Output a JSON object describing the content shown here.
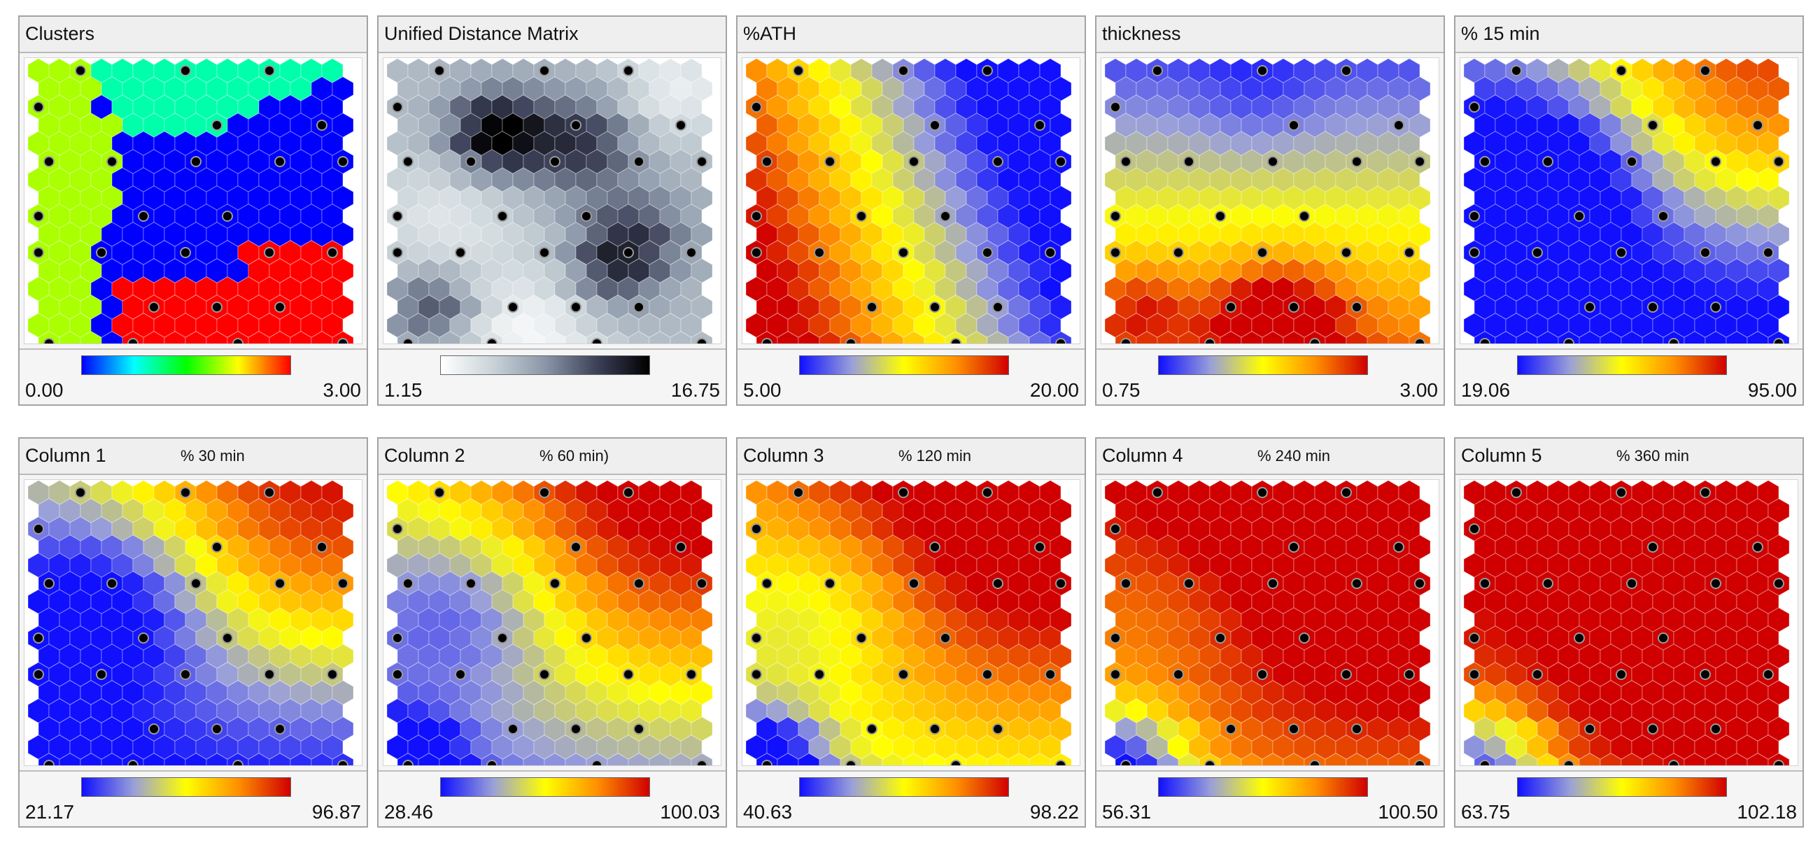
{
  "colormaps": {
    "clusters": [
      "#0000ff",
      "#00ffff",
      "#00ff00",
      "#ffff00",
      "#ff0000"
    ],
    "umatrix": [
      "#ffffff",
      "#c9d3d8",
      "#8a96a8",
      "#3c4058",
      "#000000"
    ],
    "heat": [
      "#1010ff",
      "#9aa0d8",
      "#ffff00",
      "#ff9000",
      "#d00000"
    ]
  },
  "panels": [
    {
      "title": "Clusters",
      "subtitle": "",
      "colormap": "clusters",
      "min_label": "0.00",
      "max_label": "3.00",
      "chart_data": {
        "type": "heatmap",
        "grid": "hexagonal",
        "rows": 16,
        "cols": 15,
        "value_range": [
          0,
          3
        ],
        "regions": [
          {
            "value": 2.0,
            "area": "left column block"
          },
          {
            "value": 1.0,
            "area": "top-center"
          },
          {
            "value": 0.0,
            "area": "center-right"
          },
          {
            "value": 3.0,
            "area": "bottom-right"
          }
        ]
      }
    },
    {
      "title": "Unified Distance Matrix",
      "subtitle": "",
      "colormap": "umatrix",
      "min_label": "1.15",
      "max_label": "16.75",
      "chart_data": {
        "type": "heatmap",
        "grid": "hexagonal",
        "rows": 16,
        "cols": 15,
        "value_range": [
          1.15,
          16.75
        ],
        "highlights": [
          {
            "value": 16.75,
            "area": "upper-left band"
          },
          {
            "value": 9.0,
            "area": "center-right band"
          },
          {
            "value": 1.15,
            "area": "bottom-center"
          }
        ]
      }
    },
    {
      "title": "%ATH",
      "subtitle": "",
      "colormap": "heat",
      "min_label": "5.00",
      "max_label": "20.00",
      "chart_data": {
        "type": "heatmap",
        "grid": "hexagonal",
        "rows": 16,
        "cols": 15,
        "value_range": [
          5.0,
          20.0
        ],
        "gradient": "high on left, decreasing diagonally to low at right"
      }
    },
    {
      "title": "thickness",
      "subtitle": "",
      "colormap": "heat",
      "min_label": "0.75",
      "max_label": "3.00",
      "chart_data": {
        "type": "heatmap",
        "grid": "hexagonal",
        "rows": 16,
        "cols": 15,
        "value_range": [
          0.75,
          3.0
        ],
        "gradient": "low at top, high at bottom-center"
      }
    },
    {
      "title": "% 15 min",
      "subtitle": "",
      "colormap": "heat",
      "min_label": "19.06",
      "max_label": "95.00",
      "chart_data": {
        "type": "heatmap",
        "grid": "hexagonal",
        "rows": 16,
        "cols": 15,
        "value_range": [
          19.06,
          95.0
        ],
        "gradient": "high at top-right, low at left and bottom"
      }
    },
    {
      "title": "Column  1",
      "subtitle": "% 30 min",
      "colormap": "heat",
      "min_label": "21.17",
      "max_label": "96.87",
      "chart_data": {
        "type": "heatmap",
        "grid": "hexagonal",
        "rows": 16,
        "cols": 15,
        "value_range": [
          21.17,
          96.87
        ],
        "gradient": "high at top-right, low at left and bottom"
      }
    },
    {
      "title": "Column  2",
      "subtitle": "% 60 min)",
      "colormap": "heat",
      "min_label": "28.46",
      "max_label": "100.03",
      "chart_data": {
        "type": "heatmap",
        "grid": "hexagonal",
        "rows": 16,
        "cols": 15,
        "value_range": [
          28.46,
          100.03
        ],
        "gradient": "high at top, low at bottom-left"
      }
    },
    {
      "title": "Column  3",
      "subtitle": "% 120 min",
      "colormap": "heat",
      "min_label": "40.63",
      "max_label": "98.22",
      "chart_data": {
        "type": "heatmap",
        "grid": "hexagonal",
        "rows": 16,
        "cols": 15,
        "value_range": [
          40.63,
          98.22
        ],
        "gradient": "high at top-right, low at bottom-left corner"
      }
    },
    {
      "title": "Column  4",
      "subtitle": "% 240 min",
      "colormap": "heat",
      "min_label": "56.31",
      "max_label": "100.50",
      "chart_data": {
        "type": "heatmap",
        "grid": "hexagonal",
        "rows": 16,
        "cols": 15,
        "value_range": [
          56.31,
          100.5
        ],
        "gradient": "high over most of map, low at bottom-left corner"
      }
    },
    {
      "title": "Column  5",
      "subtitle": "% 360 min",
      "colormap": "heat",
      "min_label": "63.75",
      "max_label": "102.18",
      "chart_data": {
        "type": "heatmap",
        "grid": "hexagonal",
        "rows": 16,
        "cols": 15,
        "value_range": [
          63.75,
          102.18
        ],
        "gradient": "high over top and right, low at bottom-left corner"
      }
    }
  ]
}
